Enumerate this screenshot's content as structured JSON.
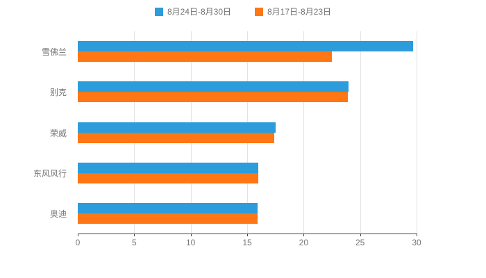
{
  "chart_data": {
    "type": "bar",
    "orientation": "horizontal",
    "title": "",
    "categories": [
      "雪佛兰",
      "别克",
      "荣威",
      "东风风行",
      "奥迪"
    ],
    "series": [
      {
        "name": "8月24日-8月30日",
        "color": "#2d9cdb",
        "values": [
          29.7,
          24.0,
          17.5,
          16.0,
          15.9
        ]
      },
      {
        "name": "8月17日-8月23日",
        "color": "#ff7614",
        "values": [
          22.5,
          23.9,
          17.4,
          16.0,
          15.9
        ]
      }
    ],
    "xlabel": "",
    "ylabel": "",
    "xlim": [
      0,
      30
    ],
    "xticks": [
      0,
      5,
      10,
      15,
      20,
      25,
      30
    ],
    "grid": true,
    "legend_position": "top"
  }
}
